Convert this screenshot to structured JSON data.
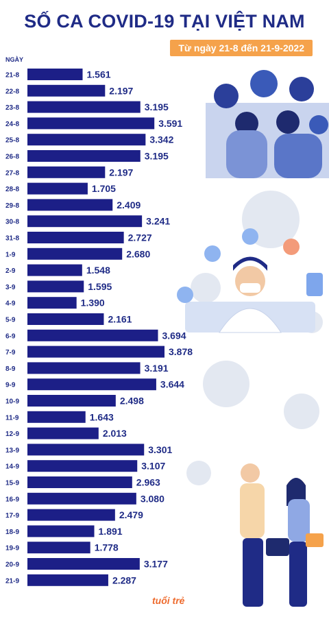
{
  "title": "SỐ CA COVID-19 TẠI VIỆT NAM",
  "subtitle": "Từ ngày 21-8 đến 21-9-2022",
  "logo_text": "tuổi trẻ",
  "colors": {
    "bar": "#1c1f87",
    "title": "#1f2b86",
    "accent": "#f5a24b"
  },
  "chart_data": {
    "type": "bar",
    "orientation": "horizontal",
    "ylabel": "NGÀY",
    "grid": false,
    "categories": [
      "21-8",
      "22-8",
      "23-8",
      "24-8",
      "25-8",
      "26-8",
      "27-8",
      "28-8",
      "29-8",
      "30-8",
      "31-8",
      "1-9",
      "2-9",
      "3-9",
      "4-9",
      "5-9",
      "6-9",
      "7-9",
      "8-9",
      "9-9",
      "10-9",
      "11-9",
      "12-9",
      "13-9",
      "14-9",
      "15-9",
      "16-9",
      "17-9",
      "18-9",
      "19-9",
      "20-9",
      "21-9"
    ],
    "values": [
      1561,
      2197,
      3195,
      3591,
      3342,
      3195,
      2197,
      1705,
      2409,
      3241,
      2727,
      2680,
      1548,
      1595,
      1390,
      2161,
      3694,
      3878,
      3191,
      3644,
      2498,
      1643,
      2013,
      3301,
      3107,
      2963,
      3080,
      2479,
      1891,
      1778,
      3177,
      2287
    ],
    "value_labels": [
      "1.561",
      "2.197",
      "3.195",
      "3.591",
      "3.342",
      "3.195",
      "2.197",
      "1.705",
      "2.409",
      "3.241",
      "2.727",
      "2.680",
      "1.548",
      "1.595",
      "1.390",
      "2.161",
      "3.694",
      "3.878",
      "3.191",
      "3.644",
      "2.498",
      "1.643",
      "2.013",
      "3.301",
      "3.107",
      "2.963",
      "3.080",
      "2.479",
      "1.891",
      "1.778",
      "3.177",
      "2.287"
    ]
  }
}
